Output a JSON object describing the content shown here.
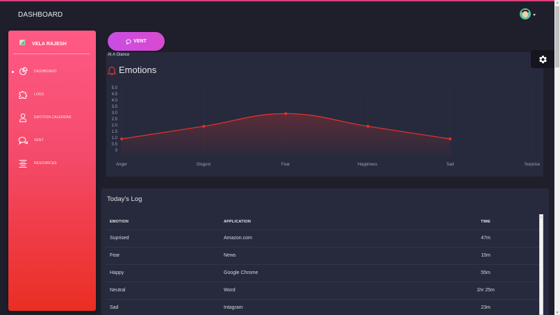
{
  "header": {
    "title": "DASHBOARD",
    "avatar_icon": "user-avatar-icon",
    "menu_caret_icon": "caret-down-icon"
  },
  "sidebar": {
    "user_name": "VELA RAJESH",
    "active_index": 0,
    "items": [
      {
        "label": "DASHBOARD",
        "icon": "pie-chart-icon"
      },
      {
        "label": "LOGS",
        "icon": "puzzle-icon"
      },
      {
        "label": "EMOTION CALENDAR",
        "icon": "user-icon"
      },
      {
        "label": "VENT",
        "icon": "chat-bubbles-icon"
      },
      {
        "label": "RESOURCES",
        "icon": "align-center-icon"
      }
    ]
  },
  "vent_button": {
    "label": "VENT",
    "icon": "chat-icon"
  },
  "glance_label": "At A Glance",
  "emotions_card": {
    "title": "Emotions",
    "icon": "bell-icon",
    "accent_color": "#e2312b"
  },
  "chart_data": {
    "type": "area",
    "title": "Emotions",
    "categories": [
      "Anger",
      "Disgust",
      "Fear",
      "Happiness",
      "Sad",
      "Surprise"
    ],
    "series": [
      {
        "name": "Emotions",
        "values": [
          1.0,
          2.0,
          3.0,
          2.0,
          1.0,
          null
        ],
        "color": "#e2312b"
      }
    ],
    "yticks": [
      "5.0",
      "4.5",
      "4.0",
      "3.5",
      "3.0",
      "2.5",
      "2.0",
      "1.5",
      "1.0",
      "0.5",
      "0"
    ],
    "ylim": [
      0,
      5
    ],
    "xlabel": "",
    "ylabel": "",
    "grid": {
      "vertical": true,
      "horizontal": false
    },
    "legend": "none",
    "smooth": true
  },
  "settings_button": {
    "icon": "gear-icon"
  },
  "log_card": {
    "title": "Today's Log",
    "columns": {
      "emotion": "EMOTION",
      "application": "APPLICATION",
      "time": "TIME"
    },
    "rows": [
      {
        "emotion": "Suprised",
        "application": "Amazon.com",
        "time": "47m"
      },
      {
        "emotion": "Fear",
        "application": "News",
        "time": "15m"
      },
      {
        "emotion": "Happy",
        "application": "Google Chrome",
        "time": "55m"
      },
      {
        "emotion": "Neutral",
        "application": "Word",
        "time": "1hr 25m"
      },
      {
        "emotion": "Sad",
        "application": "Intagram",
        "time": "23m"
      }
    ]
  },
  "colors": {
    "background": "#1f1f2b",
    "card": "#272a3d",
    "sidebar_gradient_top": "#ff5a86",
    "sidebar_gradient_bottom": "#ea2e22",
    "vent_button": "#c94de3",
    "chart_line": "#e2312b"
  }
}
